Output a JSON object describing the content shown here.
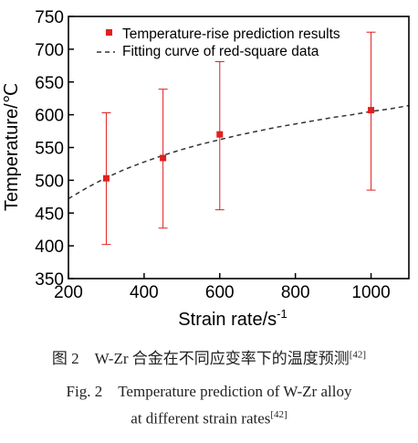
{
  "chart_data": {
    "type": "scatter",
    "xlabel": "Strain rate/s",
    "xlabel_sup": "-1",
    "ylabel": "Temperature/℃",
    "xlim": [
      200,
      1100
    ],
    "ylim": [
      350,
      750
    ],
    "xticks": [
      200,
      400,
      600,
      800,
      1000
    ],
    "yticks": [
      350,
      400,
      450,
      500,
      550,
      600,
      650,
      700,
      750
    ],
    "grid": false,
    "legend_position": "top-right",
    "series": [
      {
        "name": "Temperature-rise prediction results",
        "marker": "square",
        "color": "#e02020",
        "x": [
          300,
          450,
          600,
          1000
        ],
        "y": [
          503,
          534,
          570,
          607
        ],
        "error_low": [
          402,
          427,
          455,
          485
        ],
        "error_high": [
          603,
          639,
          681,
          726
        ]
      },
      {
        "name": "Fitting curve of red-square data",
        "style": "dashed",
        "color": "#333333",
        "x": [
          200,
          250,
          300,
          350,
          400,
          450,
          500,
          550,
          600,
          650,
          700,
          750,
          800,
          850,
          900,
          950,
          1000,
          1050,
          1100
        ],
        "y": [
          472,
          489,
          504,
          517,
          528,
          538,
          547,
          555,
          562,
          569,
          575,
          581,
          586,
          591,
          596,
          600,
          605,
          609,
          614
        ]
      }
    ]
  },
  "caption": {
    "cn": "图 2　W-Zr 合金在不同应变率下的温度预测",
    "en_line1": "Fig. 2　Temperature prediction of W-Zr alloy",
    "en_line2": "at different strain rates",
    "ref": "[42]"
  }
}
